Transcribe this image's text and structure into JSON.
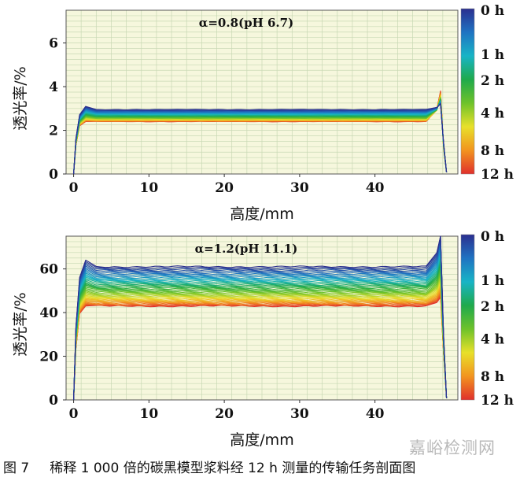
{
  "chart_data": [
    {
      "type": "line",
      "annotation": "α=0.8(pH 6.7)",
      "xlabel": "高度/mm",
      "ylabel": "透光率/%",
      "xlim": [
        -1,
        51
      ],
      "ylim": [
        0,
        7.5
      ],
      "xticks": [
        0,
        10,
        20,
        30,
        40
      ],
      "yticks": [
        0,
        2,
        4,
        6
      ],
      "grid": true,
      "series_start": "0 h",
      "series_end": "12 h",
      "series_plateau_range": [
        2.4,
        2.95
      ],
      "x": [
        0,
        0.5,
        1,
        2,
        5,
        10,
        20,
        30,
        40,
        47,
        48.3,
        48.8,
        49.2,
        49.6
      ],
      "colorbar": {
        "labels": [
          "0 h",
          "1 h",
          "2 h",
          "4 h",
          "8 h",
          "12 h"
        ],
        "positions_hours": [
          0,
          1,
          2,
          4,
          8,
          12
        ],
        "colors": [
          "#2b2f8f",
          "#1f73c2",
          "#18b4c6",
          "#1faa4c",
          "#6ec22a",
          "#e8e02a",
          "#f2941f",
          "#e0302c"
        ]
      }
    },
    {
      "type": "line",
      "annotation": "α=1.2(pH 11.1)",
      "xlabel": "高度/mm",
      "ylabel": "透光率/%",
      "xlim": [
        -1,
        51
      ],
      "ylim": [
        0,
        75
      ],
      "xticks": [
        0,
        10,
        20,
        30,
        40
      ],
      "yticks": [
        0,
        20,
        40,
        60
      ],
      "grid": true,
      "series_start": "0 h",
      "series_end": "12 h",
      "series_plateau_range": [
        43,
        61
      ],
      "x": [
        0,
        0.5,
        1,
        2,
        5,
        10,
        20,
        30,
        40,
        47,
        48.3,
        48.8,
        49.2,
        49.6
      ],
      "colorbar": {
        "labels": [
          "0 h",
          "1 h",
          "2 h",
          "4 h",
          "8 h",
          "12 h"
        ],
        "positions_hours": [
          0,
          1,
          2,
          4,
          8,
          12
        ],
        "colors": [
          "#2b2f8f",
          "#1f73c2",
          "#18b4c6",
          "#1faa4c",
          "#6ec22a",
          "#e8e02a",
          "#f2941f",
          "#e0302c"
        ]
      }
    }
  ],
  "caption": {
    "number": "图 7",
    "text": "稀释 1 000 倍的碳黑模型浆料经 12 h 测量的传输任务剖面图"
  },
  "watermark": "嘉峪检测网"
}
